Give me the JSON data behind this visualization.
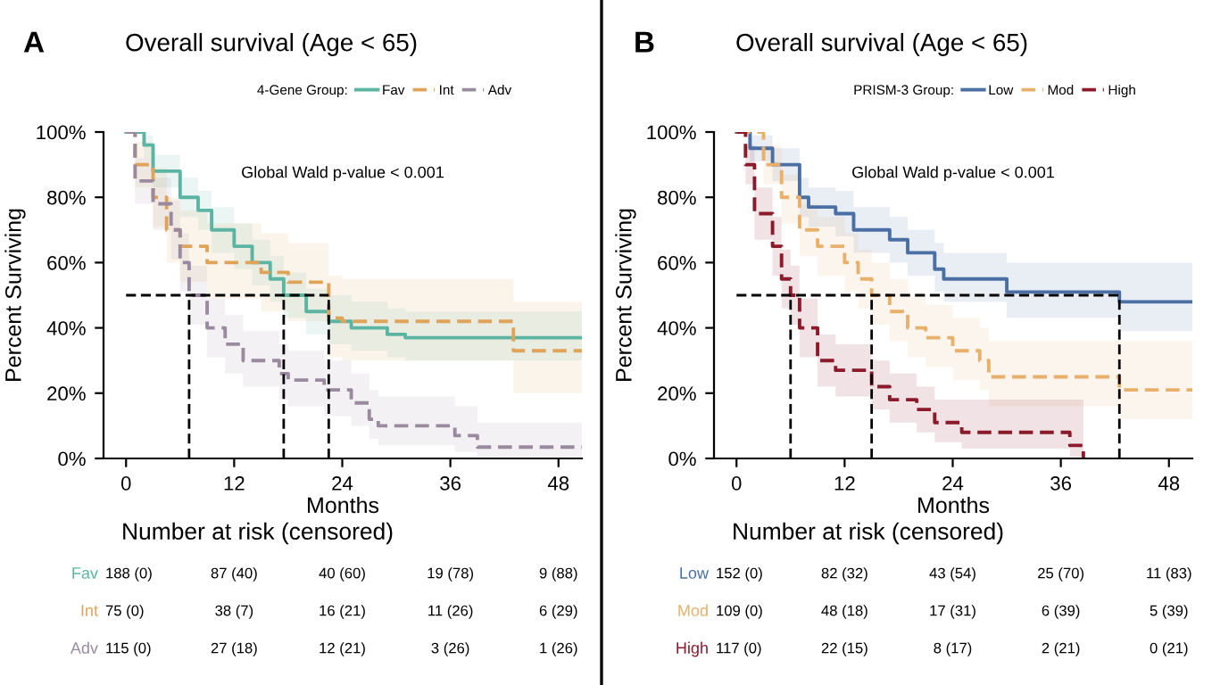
{
  "chart_data": [
    {
      "type": "step",
      "title": "Overall survival (Age < 65)",
      "xlabel": "Months",
      "ylabel": "Percent Surviving",
      "legend_title": "4-Gene Group:",
      "legend": "top",
      "xlim": [
        -2.5,
        50.6
      ],
      "xticks": [
        0,
        12,
        24,
        36,
        48
      ],
      "ylim": [
        0,
        100
      ],
      "yticks": [
        {
          "value": 0,
          "label": "0%"
        },
        {
          "value": 20,
          "label": "20%"
        },
        {
          "value": 40,
          "label": "40%"
        },
        {
          "value": 60,
          "label": "60%"
        },
        {
          "value": 80,
          "label": "80%"
        },
        {
          "value": 100,
          "label": "100%"
        }
      ],
      "grid": false,
      "series": [
        {
          "name": "Fav",
          "color": "#5bb5a2",
          "line_style": "solid",
          "x": [
            0,
            2,
            3,
            6,
            8,
            9.5,
            12,
            14,
            16,
            17.5,
            20,
            22.5,
            25,
            29,
            31,
            50.6
          ],
          "values": [
            100,
            96,
            88,
            80,
            76,
            70,
            65,
            60,
            55,
            50,
            45,
            42,
            40,
            38,
            37,
            37
          ],
          "lower": [
            100,
            92,
            83,
            74,
            70,
            63,
            58,
            53,
            48,
            43,
            38,
            35,
            33,
            31,
            30,
            30
          ],
          "upper": [
            100,
            99,
            93,
            86,
            82,
            77,
            72,
            67,
            62,
            57,
            52,
            50,
            48,
            46,
            45,
            45
          ]
        },
        {
          "name": "Int",
          "color": "#e0a35a",
          "line_style": "dashed",
          "x": [
            0,
            1,
            3,
            4.5,
            6,
            9,
            13,
            15,
            18,
            22.5,
            24,
            42.5,
            43,
            50.6
          ],
          "values": [
            100,
            90,
            80,
            70,
            65,
            60,
            60,
            57,
            54,
            43,
            42,
            42,
            33,
            33
          ],
          "lower": [
            100,
            83,
            71,
            60,
            54,
            49,
            49,
            45,
            42,
            31,
            30,
            30,
            20,
            20
          ],
          "upper": [
            100,
            97,
            89,
            80,
            76,
            72,
            72,
            69,
            66,
            56,
            55,
            55,
            48,
            48
          ]
        },
        {
          "name": "Adv",
          "color": "#9a8aa0",
          "line_style": "dashed",
          "x": [
            0,
            1,
            3,
            5,
            6,
            7,
            9,
            11,
            13,
            17,
            18,
            22,
            25,
            27,
            28,
            36.5,
            39,
            50.6
          ],
          "values": [
            100,
            85,
            78,
            70,
            60,
            50,
            40,
            35,
            30,
            26,
            24,
            21,
            17,
            12,
            10,
            7,
            3.5,
            3.5
          ],
          "lower": [
            100,
            78,
            70,
            61,
            51,
            41,
            31,
            26,
            22,
            18,
            16,
            13,
            10,
            6,
            4,
            2,
            0.5,
            0.5
          ],
          "upper": [
            100,
            92,
            86,
            79,
            69,
            59,
            49,
            44,
            39,
            35,
            33,
            30,
            26,
            21,
            19,
            16,
            11,
            11
          ]
        }
      ],
      "ref_lines": [
        {
          "axis": "y",
          "value": 50,
          "line_style": "dashed",
          "color": "#000000"
        },
        {
          "axis": "x",
          "value": 7,
          "line_style": "dashed",
          "color": "#000000"
        },
        {
          "axis": "x",
          "value": 17.5,
          "line_style": "dashed",
          "color": "#000000"
        },
        {
          "axis": "x",
          "value": 22.5,
          "line_style": "dashed",
          "color": "#000000"
        }
      ],
      "annotations": [
        "A",
        "Global Wald p-value < 0.001",
        "Number at risk (censored)",
        "188 (0)",
        "87 (40)",
        "40 (60)",
        "19 (78)",
        "9 (88)",
        "75 (0)",
        "38 (7)",
        "16 (21)",
        "11 (26)",
        "6 (29)",
        "115 (0)",
        "27 (18)",
        "12 (21)",
        "3 (26)",
        "1 (26)"
      ]
    },
    {
      "type": "step",
      "title": "Overall survival (Age < 65)",
      "xlabel": "Months",
      "ylabel": "Percent Surviving",
      "legend_title": "PRISM-3 Group:",
      "legend": "top",
      "xlim": [
        -2.5,
        50.6
      ],
      "xticks": [
        0,
        12,
        24,
        36,
        48
      ],
      "ylim": [
        0,
        100
      ],
      "yticks": [
        {
          "value": 0,
          "label": "0%"
        },
        {
          "value": 20,
          "label": "20%"
        },
        {
          "value": 40,
          "label": "40%"
        },
        {
          "value": 60,
          "label": "60%"
        },
        {
          "value": 80,
          "label": "80%"
        },
        {
          "value": 100,
          "label": "100%"
        }
      ],
      "grid": false,
      "series": [
        {
          "name": "Low",
          "color": "#4a6fa5",
          "line_style": "solid",
          "x": [
            0,
            1.5,
            4,
            7,
            8,
            11,
            13,
            17,
            19,
            22,
            23,
            27,
            30,
            42.5,
            50.6
          ],
          "values": [
            100,
            95,
            90,
            80,
            77,
            75,
            70,
            67,
            63,
            58,
            55,
            55,
            51,
            48,
            48
          ],
          "lower": [
            100,
            91,
            85,
            74,
            71,
            68,
            63,
            60,
            56,
            51,
            48,
            48,
            43,
            39,
            39
          ],
          "upper": [
            100,
            99,
            95,
            86,
            83,
            82,
            77,
            74,
            70,
            66,
            63,
            63,
            60,
            60,
            60
          ]
        },
        {
          "name": "Mod",
          "color": "#e8b06a",
          "line_style": "dashed",
          "x": [
            0,
            3,
            5,
            7,
            9,
            12,
            13.5,
            15,
            17,
            19,
            21,
            24,
            27,
            28,
            42.5,
            50.6
          ],
          "values": [
            100,
            90,
            80,
            70,
            65,
            60,
            55,
            50,
            45,
            40,
            37,
            33,
            30,
            25,
            21,
            21
          ],
          "lower": [
            100,
            84,
            72,
            62,
            56,
            51,
            46,
            41,
            36,
            31,
            28,
            24,
            21,
            16,
            12,
            12
          ],
          "upper": [
            100,
            96,
            87,
            78,
            74,
            69,
            64,
            60,
            55,
            50,
            47,
            43,
            40,
            36,
            36,
            36
          ]
        },
        {
          "name": "High",
          "color": "#8b1a2b",
          "line_style": "dashed",
          "x": [
            0,
            1,
            2,
            4,
            5,
            6,
            7,
            9,
            11,
            15,
            17,
            20,
            22,
            25,
            36,
            37,
            38.5
          ],
          "values": [
            100,
            90,
            75,
            65,
            55,
            50,
            40,
            30,
            27,
            22,
            18,
            15,
            11,
            8,
            8,
            4,
            0
          ],
          "lower": [
            100,
            84,
            67,
            56,
            46,
            41,
            31,
            22,
            19,
            15,
            11,
            8,
            5,
            3,
            3,
            0.5,
            0
          ],
          "upper": [
            100,
            96,
            83,
            74,
            64,
            59,
            49,
            38,
            35,
            30,
            26,
            22,
            18,
            18,
            18,
            18,
            18
          ]
        }
      ],
      "ref_lines": [
        {
          "axis": "y",
          "value": 50,
          "line_style": "dashed",
          "color": "#000000"
        },
        {
          "axis": "x",
          "value": 6,
          "line_style": "dashed",
          "color": "#000000"
        },
        {
          "axis": "x",
          "value": 15,
          "line_style": "dashed",
          "color": "#000000"
        },
        {
          "axis": "x",
          "value": 42.5,
          "line_style": "dashed",
          "color": "#000000"
        }
      ],
      "annotations": [
        "B",
        "Global Wald p-value < 0.001",
        "Number at risk (censored)",
        "152 (0)",
        "82 (32)",
        "43 (54)",
        "25 (70)",
        "11 (83)",
        "109 (0)",
        "48 (18)",
        "17 (31)",
        "6 (39)",
        "5 (39)",
        "117 (0)",
        "22 (15)",
        "8 (17)",
        "2 (21)",
        "0 (21)"
      ]
    }
  ]
}
